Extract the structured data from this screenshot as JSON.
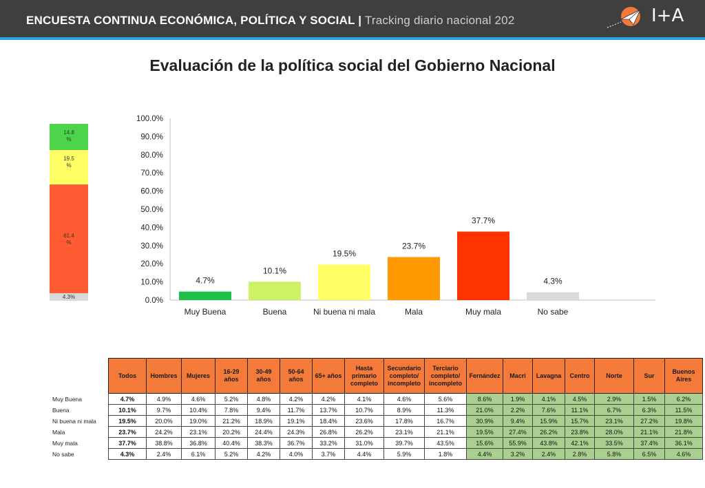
{
  "header": {
    "title_bold": "ENCUESTA CONTINUA ECONÓMICA, POLÍTICA Y SOCIAL |",
    "title_sub": "Tracking diario nacional 202",
    "logo_text": "I+A"
  },
  "page_title": "Evaluación de la política social del Gobierno Nacional",
  "stack": {
    "segments": [
      {
        "label": "14.8\n%",
        "value": 14.8,
        "color": "#4cd44a"
      },
      {
        "label": "19.5\n%",
        "value": 19.5,
        "color": "#ffff66"
      },
      {
        "label": "61.4\n%",
        "value": 61.4,
        "color": "#ff5c33"
      },
      {
        "label": "4.3%",
        "value": 4.3,
        "color": "#d9d9d9"
      }
    ]
  },
  "chart_data": {
    "type": "bar",
    "categories": [
      "Muy Buena",
      "Buena",
      "Ni buena ni mala",
      "Mala",
      "Muy mala",
      "No sabe"
    ],
    "values": [
      4.7,
      10.1,
      19.5,
      23.7,
      37.7,
      4.3
    ],
    "value_labels": [
      "4.7%",
      "10.1%",
      "19.5%",
      "23.7%",
      "37.7%",
      "4.3%"
    ],
    "colors": [
      "#1fbf4a",
      "#ccf266",
      "#ffff66",
      "#ff9900",
      "#ff3300",
      "#d9d9d9"
    ],
    "ylim": [
      0,
      100
    ],
    "yticks": [
      "0.0%",
      "10.0%",
      "20.0%",
      "30.0%",
      "40.0%",
      "50.0%",
      "60.0%",
      "70.0%",
      "80.0%",
      "90.0%",
      "100.0%"
    ],
    "title": "",
    "xlabel": "",
    "ylabel": ""
  },
  "table": {
    "headers": [
      "Todos",
      "Hombres",
      "Mujeres",
      "16-29 años",
      "30-49 años",
      "50-64 años",
      "65+ años",
      "Hasta primario completo",
      "Secundario completo/ incompleto",
      "Terciario completo/ incompleto",
      "Fernández",
      "Macri",
      "Lavagna",
      "Centro",
      "Norte",
      "Sur",
      "Buenos Aires"
    ],
    "rows": [
      {
        "label": "Muy Buena",
        "values": [
          "4.7%",
          "4.9%",
          "4.6%",
          "5.2%",
          "4.8%",
          "4.2%",
          "4.2%",
          "4.1%",
          "4.6%",
          "5.6%",
          "8.6%",
          "1.9%",
          "4.1%",
          "4.5%",
          "2.9%",
          "1.5%",
          "6.2%"
        ]
      },
      {
        "label": "Buena",
        "values": [
          "10.1%",
          "9.7%",
          "10.4%",
          "7.8%",
          "9.4%",
          "11.7%",
          "13.7%",
          "10.7%",
          "8.9%",
          "11.3%",
          "21.0%",
          "2.2%",
          "7.6%",
          "11.1%",
          "6.7%",
          "6.3%",
          "11.5%"
        ]
      },
      {
        "label": "Ni buena ni mala",
        "values": [
          "19.5%",
          "20.0%",
          "19.0%",
          "21.2%",
          "18.9%",
          "19.1%",
          "18.4%",
          "23.6%",
          "17.8%",
          "16.7%",
          "30.9%",
          "9.4%",
          "15.9%",
          "15.7%",
          "23.1%",
          "27.2%",
          "19.8%"
        ]
      },
      {
        "label": "Mala",
        "values": [
          "23.7%",
          "24.2%",
          "23.1%",
          "20.2%",
          "24.4%",
          "24.3%",
          "26.8%",
          "26.2%",
          "23.1%",
          "21.1%",
          "19.5%",
          "27.4%",
          "26.2%",
          "23.8%",
          "28.0%",
          "21.1%",
          "21.8%"
        ]
      },
      {
        "label": "Muy mala",
        "values": [
          "37.7%",
          "38.8%",
          "36.8%",
          "40.4%",
          "38.3%",
          "36.7%",
          "33.2%",
          "31.0%",
          "39.7%",
          "43.5%",
          "15.6%",
          "55.9%",
          "43.8%",
          "42.1%",
          "33.5%",
          "37.4%",
          "36.1%"
        ]
      },
      {
        "label": "No sabe",
        "values": [
          "4.3%",
          "2.4%",
          "6.1%",
          "5.2%",
          "4.2%",
          "4.0%",
          "3.7%",
          "4.4%",
          "5.9%",
          "1.8%",
          "4.4%",
          "3.2%",
          "2.4%",
          "2.8%",
          "5.8%",
          "6.5%",
          "4.6%"
        ]
      }
    ]
  },
  "colors": {
    "header_bg": "#3f3f3f",
    "header_stripe": "#2aa7e0",
    "table_header": "#f47a3a",
    "table_green": "#a9d08e"
  }
}
